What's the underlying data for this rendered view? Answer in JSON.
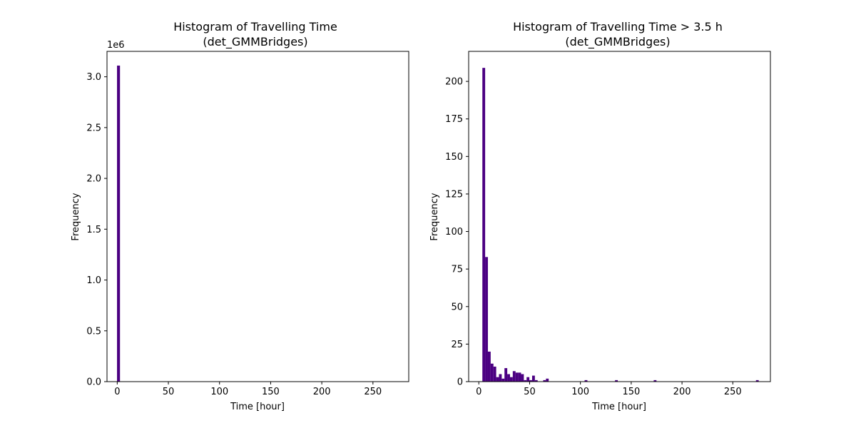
{
  "chart_data": [
    {
      "type": "bar",
      "title_line1": "Histogram of Travelling Time",
      "title_line2": "(det_GMMBridges)",
      "xlabel": "Time [hour]",
      "ylabel": "Frequency",
      "offset_text": "1e6",
      "xlim": [
        -10,
        285
      ],
      "ylim": [
        0,
        3.25
      ],
      "x_ticks": [
        0,
        50,
        100,
        150,
        200,
        250
      ],
      "x_tick_labels": [
        "0",
        "50",
        "100",
        "150",
        "200",
        "250"
      ],
      "y_ticks": [
        0,
        0.5,
        1.0,
        1.5,
        2.0,
        2.5,
        3.0
      ],
      "y_tick_labels": [
        "0.0",
        "0.5",
        "1.0",
        "1.5",
        "2.0",
        "2.5",
        "3.0"
      ],
      "bars": [
        {
          "x0": -0.2,
          "x1": 2.7,
          "value": 3.11
        }
      ],
      "bar_color": "#4b0082",
      "grid": false
    },
    {
      "type": "bar",
      "title_line1": "Histogram of Travelling Time > 3.5 h",
      "title_line2": "(det_GMMBridges)",
      "xlabel": "Time [hour]",
      "ylabel": "Frequency",
      "offset_text": "",
      "xlim": [
        -10,
        287
      ],
      "ylim": [
        0,
        220
      ],
      "x_ticks": [
        0,
        50,
        100,
        150,
        200,
        250
      ],
      "x_tick_labels": [
        "0",
        "50",
        "100",
        "150",
        "200",
        "250"
      ],
      "y_ticks": [
        0,
        25,
        50,
        75,
        100,
        125,
        150,
        175,
        200
      ],
      "y_tick_labels": [
        "0",
        "25",
        "50",
        "75",
        "100",
        "125",
        "150",
        "175",
        "200"
      ],
      "bin_start": 3.5,
      "bin_width": 2.72,
      "values": [
        209,
        83,
        20,
        12,
        10,
        3,
        5,
        2,
        9,
        5,
        3,
        7,
        6,
        6,
        5,
        1,
        3,
        1,
        4,
        1,
        0,
        0,
        1,
        2,
        0,
        0,
        0,
        0,
        0,
        0,
        0,
        0,
        0,
        0,
        0,
        0,
        0,
        1,
        0,
        0,
        0,
        0,
        0,
        0,
        0,
        0,
        0,
        0,
        1,
        0,
        0,
        0,
        0,
        0,
        0,
        0,
        0,
        0,
        0,
        0,
        0,
        0,
        1,
        0,
        0,
        0,
        0,
        0,
        0,
        0,
        0,
        0,
        0,
        0,
        0,
        0,
        0,
        0,
        0,
        0,
        0,
        0,
        0,
        0,
        0,
        0,
        0,
        0,
        0,
        0,
        0,
        0,
        0,
        0,
        0,
        0,
        0,
        0,
        0,
        1
      ],
      "bar_color": "#4b0082",
      "grid": false
    }
  ]
}
